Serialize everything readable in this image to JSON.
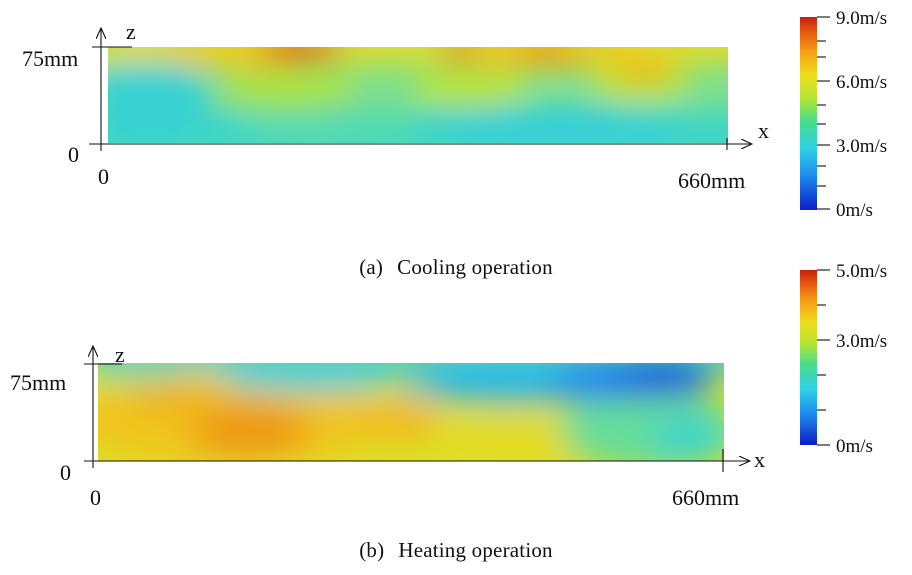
{
  "panels": [
    {
      "caption_tag": "(a)",
      "caption_text": "Cooling operation",
      "axis": {
        "x_label": "x",
        "z_label": "z",
        "x_origin": "0",
        "x_end": "660mm",
        "z_origin": "0",
        "z_top": "75mm"
      },
      "colorbar": {
        "top_label": "9.0m/s",
        "mid1_label": "6.0m/s",
        "mid2_label": "3.0m/s",
        "bottom_label": "0m/s"
      }
    },
    {
      "caption_tag": "(b)",
      "caption_text": "Heating operation",
      "axis": {
        "x_label": "x",
        "z_label": "z",
        "x_origin": "0",
        "x_end": "660mm",
        "z_origin": "0",
        "z_top": "75mm"
      },
      "colorbar": {
        "top_label": "5.0m/s",
        "mid_label": "3.0m/s",
        "bottom_label": "0m/s"
      }
    }
  ],
  "colors": {
    "scale": [
      "#0a1ec8",
      "#1e8cf0",
      "#2ed2e6",
      "#48dc8c",
      "#b4e632",
      "#f0dc1e",
      "#f5a014",
      "#e85a10",
      "#c81e0a"
    ]
  }
}
